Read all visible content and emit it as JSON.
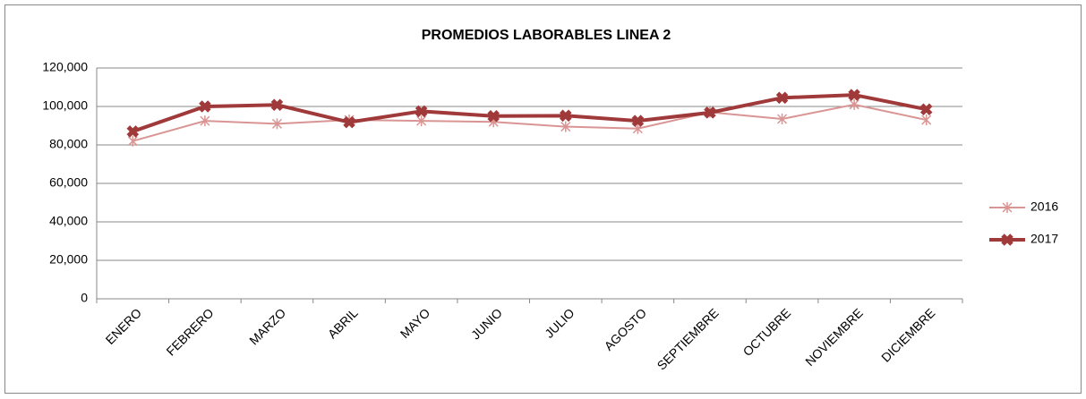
{
  "chart_data": {
    "type": "line",
    "title": "PROMEDIOS LABORABLES LINEA 2",
    "categories": [
      "ENERO",
      "FEBRERO",
      "MARZO",
      "ABRIL",
      "MAYO",
      "JUNIO",
      "JULIO",
      "AGOSTO",
      "SEPTIEMBRE",
      "OCTUBRE",
      "NOVIEMBRE",
      "DICIEMBRE"
    ],
    "series": [
      {
        "name": "2016",
        "color": "#d99594",
        "marker": "star",
        "values": [
          82000,
          92500,
          91000,
          93000,
          92500,
          92000,
          89500,
          88500,
          97000,
          93500,
          101000,
          93000
        ]
      },
      {
        "name": "2017",
        "color": "#a0393a",
        "marker": "x",
        "values": [
          87000,
          100000,
          100800,
          91800,
          97500,
          95000,
          95200,
          92500,
          96800,
          104500,
          106000,
          98500
        ]
      }
    ],
    "ylim": [
      0,
      120000
    ],
    "yticks": [
      0,
      {
        "value": 20000,
        "label": "20,000"
      },
      {
        "value": 40000,
        "label": "40,000"
      },
      {
        "value": 60000,
        "label": "60,000"
      },
      {
        "value": 80000,
        "label": "80,000"
      },
      {
        "value": 100000,
        "label": "100,000"
      },
      {
        "value": 120000,
        "label": "120,000"
      }
    ],
    "grid": true,
    "legend": "right"
  }
}
